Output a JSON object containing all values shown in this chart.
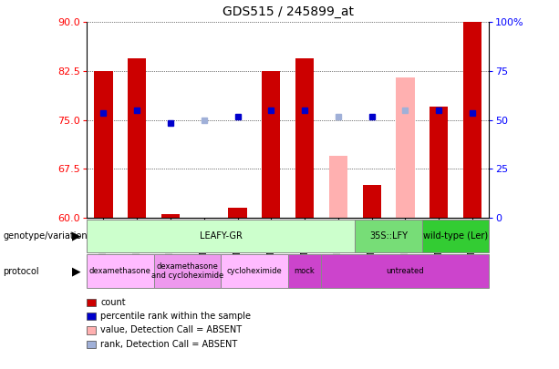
{
  "title": "GDS515 / 245899_at",
  "samples": [
    "GSM13778",
    "GSM13782",
    "GSM13779",
    "GSM13783",
    "GSM13780",
    "GSM13784",
    "GSM13781",
    "GSM13785",
    "GSM13789",
    "GSM13792",
    "GSM13791",
    "GSM13793"
  ],
  "count_values": [
    82.5,
    84.5,
    60.5,
    60.0,
    61.5,
    82.5,
    84.5,
    null,
    65.0,
    null,
    77.0,
    90.0
  ],
  "count_absent_values": [
    null,
    null,
    null,
    null,
    null,
    null,
    null,
    69.5,
    null,
    81.5,
    null,
    null
  ],
  "percentile_values": [
    76.0,
    76.5,
    74.5,
    null,
    75.5,
    76.5,
    76.5,
    null,
    75.5,
    null,
    76.5,
    76.0
  ],
  "percentile_absent_values": [
    null,
    null,
    null,
    75.0,
    null,
    null,
    null,
    75.5,
    null,
    76.5,
    null,
    null
  ],
  "ylim": [
    60,
    90
  ],
  "yticks": [
    60,
    67.5,
    75,
    82.5,
    90
  ],
  "y2lim": [
    0,
    100
  ],
  "y2ticks": [
    0,
    25,
    50,
    75,
    100
  ],
  "y2ticklabels": [
    "0",
    "25",
    "50",
    "75",
    "100%"
  ],
  "bar_color": "#cc0000",
  "absent_bar_color": "#ffb0b0",
  "rank_color": "#0000cc",
  "absent_rank_color": "#a0b0d8",
  "genotype_groups": [
    {
      "label": "LEAFY-GR",
      "start": 0,
      "end": 8,
      "color": "#ccffcc"
    },
    {
      "label": "35S::LFY",
      "start": 8,
      "end": 10,
      "color": "#77dd77"
    },
    {
      "label": "wild-type (Ler)",
      "start": 10,
      "end": 12,
      "color": "#33cc33"
    }
  ],
  "protocol_groups": [
    {
      "label": "dexamethasone",
      "start": 0,
      "end": 2,
      "color": "#ffbbff"
    },
    {
      "label": "dexamethasone\nand cycloheximide",
      "start": 2,
      "end": 4,
      "color": "#ee99ee"
    },
    {
      "label": "cycloheximide",
      "start": 4,
      "end": 6,
      "color": "#ffbbff"
    },
    {
      "label": "mock",
      "start": 6,
      "end": 7,
      "color": "#cc44cc"
    },
    {
      "label": "untreated",
      "start": 7,
      "end": 12,
      "color": "#cc44cc"
    }
  ],
  "legend_items": [
    {
      "label": "count",
      "color": "#cc0000"
    },
    {
      "label": "percentile rank within the sample",
      "color": "#0000cc"
    },
    {
      "label": "value, Detection Call = ABSENT",
      "color": "#ffb0b0"
    },
    {
      "label": "rank, Detection Call = ABSENT",
      "color": "#a0b0d8"
    }
  ]
}
